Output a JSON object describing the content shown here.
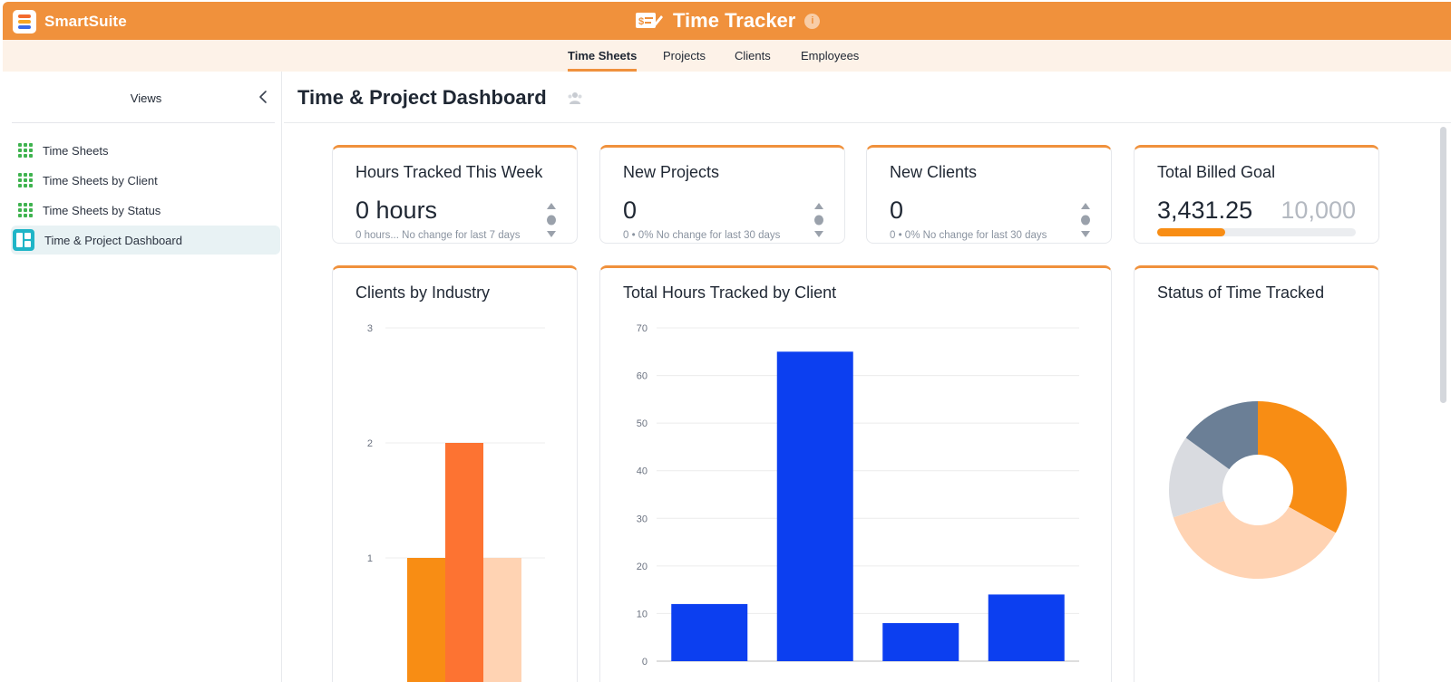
{
  "app": {
    "brand": "SmartSuite",
    "title": "Time Tracker",
    "info_icon": "info-icon",
    "colors": {
      "accent": "#f0913c",
      "tab_bg": "#fdf2e8",
      "active_view": "#e8f2f4"
    }
  },
  "tabs": [
    {
      "label": "Time Sheets",
      "active": true
    },
    {
      "label": "Projects",
      "active": false
    },
    {
      "label": "Clients",
      "active": false
    },
    {
      "label": "Employees",
      "active": false
    }
  ],
  "sidebar": {
    "title": "Views",
    "items": [
      {
        "label": "Time Sheets",
        "icon": "grid-icon",
        "active": false
      },
      {
        "label": "Time Sheets by Client",
        "icon": "grid-icon",
        "active": false
      },
      {
        "label": "Time Sheets by Status",
        "icon": "grid-icon",
        "active": false
      },
      {
        "label": "Time & Project Dashboard",
        "icon": "dashboard-icon",
        "active": true
      }
    ]
  },
  "dashboard": {
    "title": "Time & Project Dashboard",
    "metrics": [
      {
        "title": "Hours Tracked This Week",
        "value": "0 hours",
        "sub": "0 hours...  No change for last 7 days"
      },
      {
        "title": "New Projects",
        "value": "0",
        "sub": "0 • 0%  No change for last 30 days"
      },
      {
        "title": "New Clients",
        "value": "0",
        "sub": "0 • 0%  No change for last 30 days"
      }
    ],
    "goal": {
      "title": "Total Billed Goal",
      "value": "3,431.25",
      "target": "10,000",
      "progress": 0.343
    }
  },
  "chart_data": [
    {
      "type": "bar",
      "title": "Clients by Industry",
      "ylim": [
        0,
        3
      ],
      "yticks": [
        "3",
        "2",
        "1"
      ],
      "grid": true,
      "series": [
        {
          "values": [
            1
          ],
          "color": "#f88d14"
        },
        {
          "values": [
            2
          ],
          "color": "#fd7332"
        },
        {
          "values": [
            1
          ],
          "color": "#ffd3b3"
        }
      ]
    },
    {
      "type": "bar",
      "title": "Total Hours Tracked by Client",
      "ylim": [
        0,
        70
      ],
      "yticks": [
        "70",
        "60",
        "50",
        "40",
        "30",
        "20",
        "10",
        "0"
      ],
      "grid": true,
      "values": [
        12,
        65,
        8,
        14
      ],
      "color": "#0c3ff0"
    },
    {
      "type": "pie",
      "title": "Status of Time Tracked",
      "donut": true,
      "values": [
        33,
        37,
        15,
        15
      ],
      "colors": [
        "#f88d14",
        "#ffd3b3",
        "#d9dbe0",
        "#6b7f96"
      ]
    }
  ]
}
